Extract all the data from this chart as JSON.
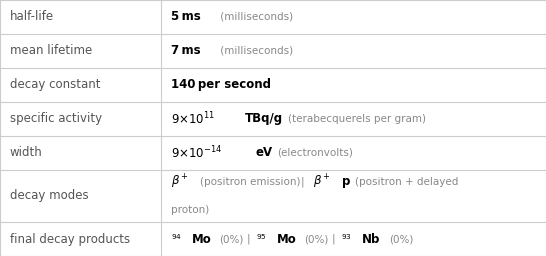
{
  "col_split": 0.295,
  "background": "#ffffff",
  "border_color": "#cccccc",
  "label_color": "#555555",
  "value_color": "#000000",
  "gray_color": "#888888",
  "row_heights": [
    1,
    1,
    1,
    1,
    1,
    1.55,
    1
  ],
  "label_fontsize": 8.5,
  "val_fontsize": 8.5,
  "small_fontsize": 7.5,
  "labels": [
    "half-life",
    "mean lifetime",
    "decay constant",
    "specific activity",
    "width",
    "decay modes",
    "final decay products"
  ]
}
